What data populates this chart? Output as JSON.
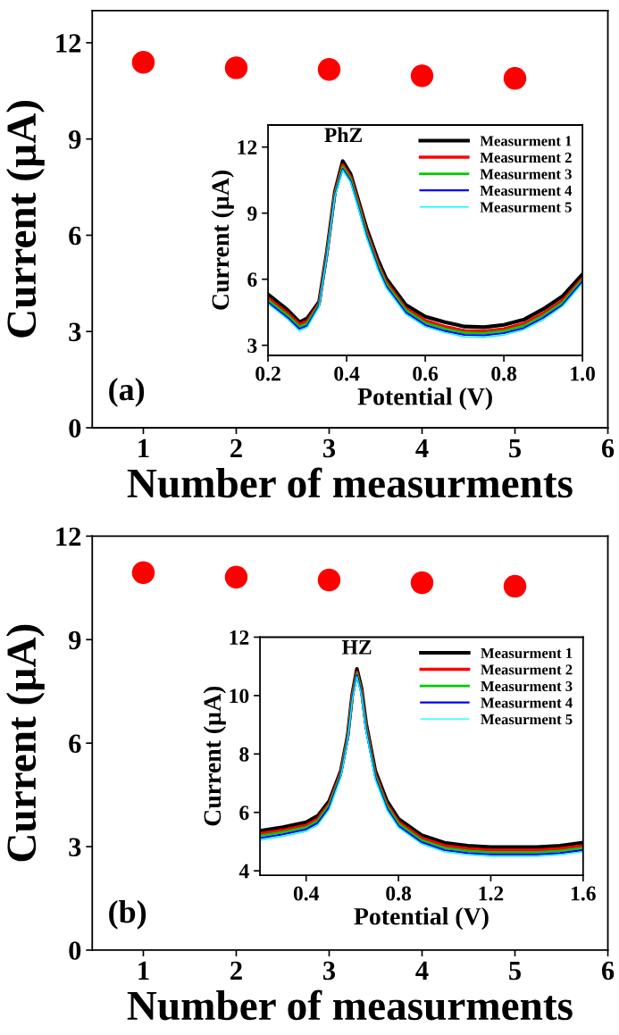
{
  "chart_data": [
    {
      "type": "scatter",
      "xlabel": "Number of measurments",
      "ylabel": "Current (µA)",
      "x": [
        1,
        2,
        3,
        4,
        5
      ],
      "values": [
        11.39,
        11.22,
        11.17,
        10.97,
        10.89
      ],
      "color": "#ff0000",
      "marker": "circle",
      "xlim": [
        0.45,
        6
      ],
      "ylim": [
        0,
        13
      ],
      "xticks": [
        1,
        2,
        3,
        4,
        5,
        6
      ],
      "yticks": [
        0,
        3,
        6,
        9,
        12
      ],
      "grid": false,
      "legend": false,
      "annotations": [
        "(a)"
      ]
    },
    {
      "type": "line",
      "xlabel": "Potential (V)",
      "ylabel": "Current (µA)",
      "xlim": [
        0.2,
        1.0
      ],
      "ylim": [
        2.54,
        13
      ],
      "xticks": [
        0.2,
        0.4,
        0.6,
        0.8,
        {
          "value": 1.0,
          "label": "1.0"
        }
      ],
      "yticks": [
        3,
        6,
        9,
        12
      ],
      "grid": false,
      "legend": "top right",
      "marker": "none",
      "line_style": "solid",
      "annotations": [
        "PhZ"
      ],
      "x": [
        0.2,
        0.25,
        0.28,
        0.3,
        0.33,
        0.35,
        0.37,
        0.39,
        0.41,
        0.43,
        0.45,
        0.48,
        0.5,
        0.55,
        0.6,
        0.65,
        0.7,
        0.75,
        0.8,
        0.85,
        0.9,
        0.95,
        1.0
      ],
      "series": [
        {
          "name": "Measurment 1",
          "color": "#000000",
          "values": [
            5.31,
            4.6,
            4.05,
            4.23,
            4.97,
            7.27,
            9.97,
            11.36,
            10.78,
            9.57,
            8.35,
            6.86,
            6.05,
            4.84,
            4.3,
            4.05,
            3.85,
            3.82,
            3.93,
            4.16,
            4.64,
            5.24,
            6.22
          ]
        },
        {
          "name": "Measurment 2",
          "color": "#ff0000",
          "values": [
            5.15,
            4.45,
            3.95,
            4.1,
            4.9,
            7.2,
            9.9,
            11.2,
            10.65,
            9.45,
            8.2,
            6.7,
            5.9,
            4.68,
            4.12,
            3.85,
            3.67,
            3.65,
            3.75,
            3.98,
            4.45,
            5.05,
            6.05
          ]
        },
        {
          "name": "Measurment 3",
          "color": "#00cc00",
          "values": [
            5.05,
            4.35,
            3.85,
            4.0,
            4.85,
            7.15,
            9.85,
            11.1,
            10.55,
            9.35,
            8.1,
            6.6,
            5.8,
            4.6,
            4.02,
            3.75,
            3.57,
            3.55,
            3.65,
            3.88,
            4.35,
            4.95,
            5.98
          ]
        },
        {
          "name": "Measurment 4",
          "color": "#0000ff",
          "values": [
            4.95,
            4.25,
            3.75,
            3.9,
            4.8,
            7.1,
            9.8,
            11.0,
            10.45,
            9.25,
            8.0,
            6.5,
            5.7,
            4.5,
            3.92,
            3.65,
            3.47,
            3.45,
            3.55,
            3.78,
            4.25,
            4.85,
            5.9
          ]
        },
        {
          "name": "Measurment 5",
          "color": "#00ffff",
          "values": [
            4.88,
            4.18,
            3.65,
            3.82,
            4.75,
            7.05,
            9.75,
            10.95,
            10.4,
            9.2,
            7.92,
            6.42,
            5.62,
            4.42,
            3.84,
            3.57,
            3.38,
            3.36,
            3.46,
            3.7,
            4.16,
            4.78,
            5.82
          ]
        }
      ]
    },
    {
      "type": "scatter",
      "xlabel": "Number of measurments",
      "ylabel": "Current (µA)",
      "x": [
        1,
        2,
        3,
        4,
        5
      ],
      "values": [
        10.94,
        10.81,
        10.73,
        10.65,
        10.55
      ],
      "color": "#ff0000",
      "marker": "circle",
      "xlim": [
        0.45,
        6
      ],
      "ylim": [
        0,
        12
      ],
      "xticks": [
        1,
        2,
        3,
        4,
        5,
        6
      ],
      "yticks": [
        0,
        3,
        6,
        9,
        12
      ],
      "grid": false,
      "legend": false,
      "annotations": [
        "(b)"
      ]
    },
    {
      "type": "line",
      "xlabel": "Potential (V)",
      "ylabel": "Current (µA)",
      "xlim": [
        0.2,
        1.6
      ],
      "ylim": [
        3.85,
        12
      ],
      "xticks": [
        0.4,
        0.8,
        1.2,
        1.6
      ],
      "yticks": [
        4,
        6,
        8,
        10,
        12
      ],
      "grid": false,
      "legend": "top right",
      "marker": "none",
      "line_style": "solid",
      "annotations": [
        "HZ"
      ],
      "x": [
        0.2,
        0.3,
        0.4,
        0.45,
        0.5,
        0.55,
        0.58,
        0.6,
        0.62,
        0.64,
        0.66,
        0.7,
        0.75,
        0.8,
        0.9,
        1.0,
        1.1,
        1.2,
        1.3,
        1.4,
        1.5,
        1.6
      ],
      "series": [
        {
          "name": "Measurment 1",
          "color": "#000000",
          "values": [
            5.37,
            5.49,
            5.66,
            5.88,
            6.39,
            7.41,
            8.63,
            10.05,
            10.91,
            10.25,
            9.03,
            7.41,
            6.39,
            5.78,
            5.22,
            4.96,
            4.86,
            4.81,
            4.81,
            4.81,
            4.86,
            4.96
          ]
        },
        {
          "name": "Measurment 2",
          "color": "#ff0000",
          "values": [
            5.27,
            5.4,
            5.56,
            5.78,
            6.3,
            7.35,
            8.58,
            10.0,
            10.8,
            10.15,
            8.93,
            7.3,
            6.28,
            5.68,
            5.12,
            4.86,
            4.76,
            4.71,
            4.71,
            4.71,
            4.76,
            4.86
          ]
        },
        {
          "name": "Measurment 3",
          "color": "#00cc00",
          "values": [
            5.2,
            5.32,
            5.49,
            5.71,
            6.24,
            7.3,
            8.55,
            9.95,
            10.75,
            10.1,
            8.88,
            7.24,
            6.21,
            5.61,
            5.05,
            4.78,
            4.68,
            4.63,
            4.63,
            4.63,
            4.68,
            4.78
          ]
        },
        {
          "name": "Measurment 4",
          "color": "#0000ff",
          "values": [
            5.12,
            5.25,
            5.42,
            5.64,
            6.17,
            7.25,
            8.5,
            9.9,
            10.7,
            10.05,
            8.82,
            7.18,
            6.14,
            5.54,
            4.98,
            4.71,
            4.61,
            4.56,
            4.56,
            4.56,
            4.61,
            4.71
          ]
        },
        {
          "name": "Measurment 5",
          "color": "#00ffff",
          "values": [
            5.05,
            5.18,
            5.35,
            5.57,
            6.1,
            7.2,
            8.45,
            9.85,
            10.65,
            10.0,
            8.76,
            7.12,
            6.08,
            5.48,
            4.92,
            4.65,
            4.55,
            4.5,
            4.5,
            4.5,
            4.55,
            4.65
          ]
        }
      ]
    }
  ]
}
